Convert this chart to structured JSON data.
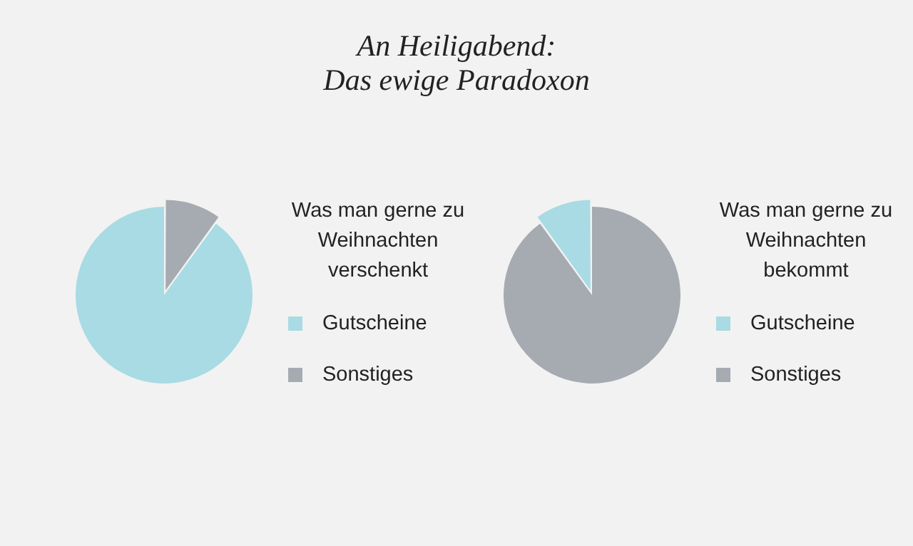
{
  "chart_data": [
    {
      "type": "pie",
      "title": "An Heiligabend:\nDas ewige Paradoxon",
      "legend_title": "Was man gerne zu Weihnachten verschenkt",
      "categories": [
        "Gutscheine",
        "Sonstiges"
      ],
      "values": [
        90,
        10
      ],
      "colors": [
        "#a8dbe3",
        "#a5abb0"
      ],
      "legend": "right"
    },
    {
      "type": "pie",
      "legend_title": "Was man gerne zu Weihnachten bekommt",
      "categories": [
        "Gutscheine",
        "Sonstiges"
      ],
      "values": [
        10,
        90
      ],
      "colors": [
        "#a8dbe3",
        "#a5abb0"
      ],
      "legend": "right"
    }
  ]
}
